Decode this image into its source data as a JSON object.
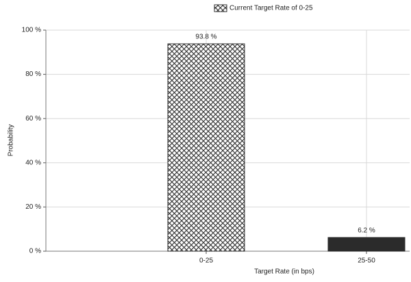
{
  "chart_data": {
    "type": "bar",
    "x_label": "Target Rate (in bps)",
    "y_label": "Probability",
    "categories": [
      "0-25",
      "25-50"
    ],
    "series": [
      {
        "name": "Current Target Rate of 0-25",
        "color": "#2b2b2b",
        "values": [
          93.8,
          6.2
        ],
        "value_labels": [
          "93.8 %",
          "6.2 %"
        ]
      }
    ],
    "hatched": [
      true,
      false
    ],
    "ylim": [
      0,
      100
    ],
    "yticks": [
      {
        "value": 0,
        "label": "0 %"
      },
      {
        "value": 20,
        "label": "20 %"
      },
      {
        "value": 40,
        "label": "40 %"
      },
      {
        "value": 60,
        "label": "60 %"
      },
      {
        "value": 80,
        "label": "80 %"
      },
      {
        "value": 100,
        "label": "100 %"
      }
    ],
    "grid": true
  }
}
